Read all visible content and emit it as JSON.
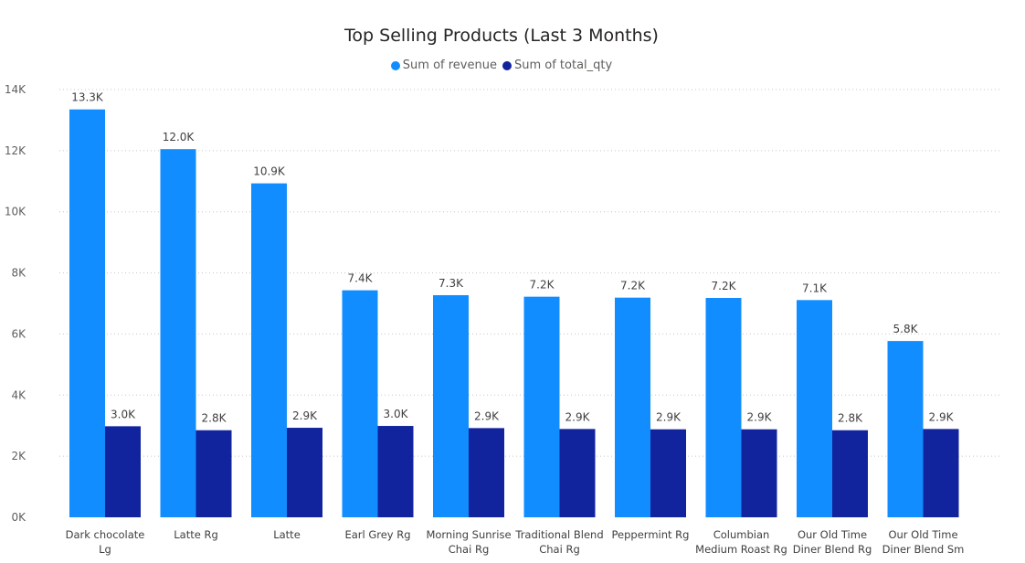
{
  "chart_data": {
    "type": "bar",
    "title": "Top Selling Products (Last 3 Months)",
    "categories": [
      [
        "Dark chocolate",
        "Lg"
      ],
      [
        "Latte Rg"
      ],
      [
        "Latte"
      ],
      [
        "Earl Grey Rg"
      ],
      [
        "Morning Sunrise",
        "Chai Rg"
      ],
      [
        "Traditional Blend",
        "Chai Rg"
      ],
      [
        "Peppermint Rg"
      ],
      [
        "Columbian",
        "Medium Roast Rg"
      ],
      [
        "Our Old Time",
        "Diner Blend Rg"
      ],
      [
        "Our Old Time",
        "Diner Blend Sm"
      ]
    ],
    "series": [
      {
        "name": "Sum of revenue",
        "color": "#118DFF",
        "values": [
          13350,
          12050,
          10930,
          7430,
          7270,
          7220,
          7190,
          7180,
          7110,
          5770
        ],
        "labels": [
          "13.3K",
          "12.0K",
          "10.9K",
          "7.4K",
          "7.3K",
          "7.2K",
          "7.2K",
          "7.2K",
          "7.1K",
          "5.8K"
        ]
      },
      {
        "name": "Sum of total_qty",
        "color": "#12239E",
        "values": [
          2980,
          2850,
          2930,
          2990,
          2920,
          2890,
          2880,
          2880,
          2850,
          2890
        ],
        "labels": [
          "3.0K",
          "2.8K",
          "2.9K",
          "3.0K",
          "2.9K",
          "2.9K",
          "2.9K",
          "2.9K",
          "2.8K",
          "2.9K"
        ]
      }
    ],
    "ylim": [
      0,
      14000
    ],
    "yticks": [
      0,
      2000,
      4000,
      6000,
      8000,
      10000,
      12000,
      14000
    ],
    "ytick_labels": [
      "0K",
      "2K",
      "4K",
      "6K",
      "8K",
      "10K",
      "12K",
      "14K"
    ],
    "xlabel": "",
    "ylabel": "",
    "grid": true,
    "legend_position": "top-center"
  }
}
